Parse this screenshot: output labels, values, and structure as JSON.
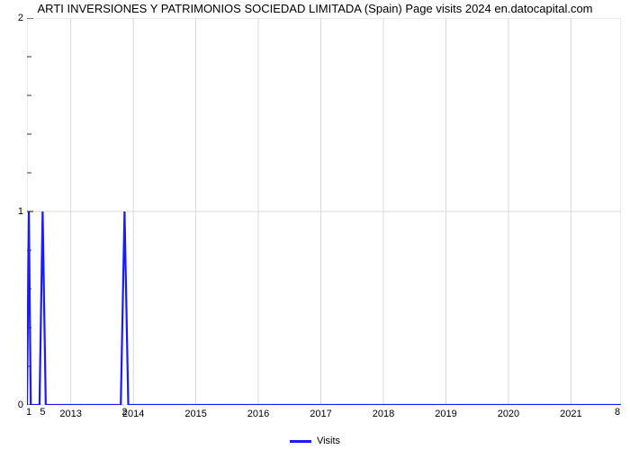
{
  "title": "ARTI INVERSIONES Y PATRIMONIOS SOCIEDAD LIMITADA (Spain) Page visits 2024 en.datocapital.com",
  "chart": {
    "type": "line",
    "background_color": "#ffffff",
    "grid_color": "#d9d9d9",
    "grid_width": 1,
    "line_color": "#1a1aff",
    "line_width": 2.2,
    "x_axis": {
      "min": 2012.3,
      "max": 2021.8,
      "tick_start": 2013,
      "tick_step": 1,
      "tick_end": 2021,
      "tick_labels": [
        "2013",
        "2014",
        "2015",
        "2016",
        "2017",
        "2018",
        "2019",
        "2020",
        "2021"
      ]
    },
    "y_axis": {
      "min": 0,
      "max": 2,
      "tick_labels": [
        "0",
        "1",
        "2"
      ]
    },
    "minor_y_ticks": [
      0.2,
      0.4,
      0.6,
      0.8,
      1.2,
      1.4,
      1.6,
      1.8
    ],
    "data_points": [
      [
        2012.3,
        0
      ],
      [
        2012.33,
        1
      ],
      [
        2012.36,
        0
      ],
      [
        2012.5,
        0
      ],
      [
        2012.55,
        1
      ],
      [
        2012.6,
        0
      ],
      [
        2013.8,
        0
      ],
      [
        2013.86,
        1
      ],
      [
        2013.92,
        0
      ],
      [
        2021.8,
        0
      ]
    ],
    "corner_labels": {
      "bottom_left": "1",
      "bottom_left_2": "5",
      "bl2_x": 2012.55,
      "mid_left": "2",
      "mid_left_x": 2013.86,
      "bottom_right": "8"
    }
  },
  "legend": {
    "label": "Visits",
    "color": "#1a1aff"
  }
}
